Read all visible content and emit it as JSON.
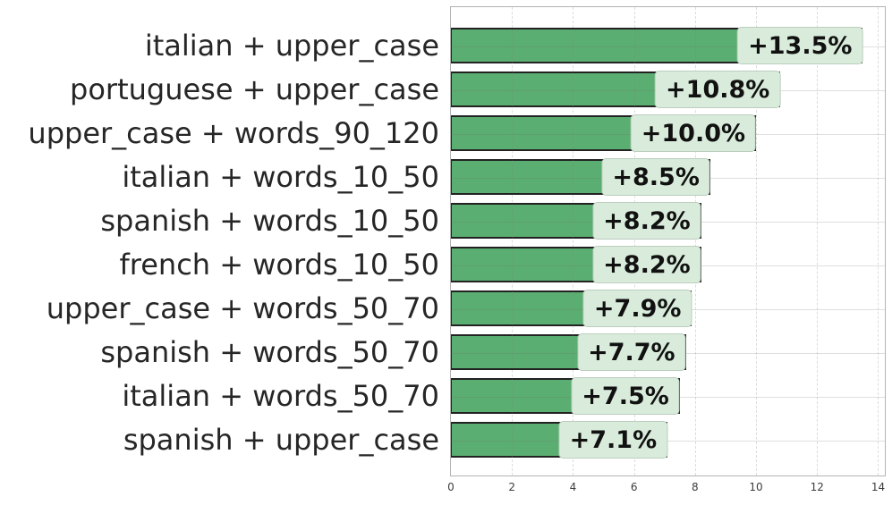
{
  "chart_data": {
    "type": "bar",
    "orientation": "horizontal",
    "title": "",
    "xlabel": "",
    "ylabel": "",
    "categories": [
      "italian + upper_case",
      "portuguese + upper_case",
      "upper_case + words_90_120",
      "italian + words_10_50",
      "spanish + words_10_50",
      "french + words_10_50",
      "upper_case + words_50_70",
      "spanish + words_50_70",
      "italian + words_50_70",
      "spanish + upper_case"
    ],
    "values": [
      13.5,
      10.8,
      10.0,
      8.5,
      8.2,
      8.2,
      7.9,
      7.7,
      7.5,
      7.1
    ],
    "value_labels": [
      "+13.5%",
      "+10.8%",
      "+10.0%",
      "+8.5%",
      "+8.2%",
      "+8.2%",
      "+7.9%",
      "+7.7%",
      "+7.5%",
      "+7.1%"
    ],
    "xticks": [
      0,
      2,
      4,
      6,
      8,
      10,
      12,
      14
    ],
    "xlim": [
      0,
      14.22
    ],
    "grid": true,
    "legend": false,
    "colors": {
      "bar": "#5BAE71",
      "bar_edge": "#222222",
      "value_box_bg": "#D9ECDB",
      "value_box_border": "#BCCDBE",
      "value_text": "#111111",
      "category_text": "#262626",
      "tick_text": "#3C3C3C",
      "spine": "#B3B3B3"
    }
  }
}
